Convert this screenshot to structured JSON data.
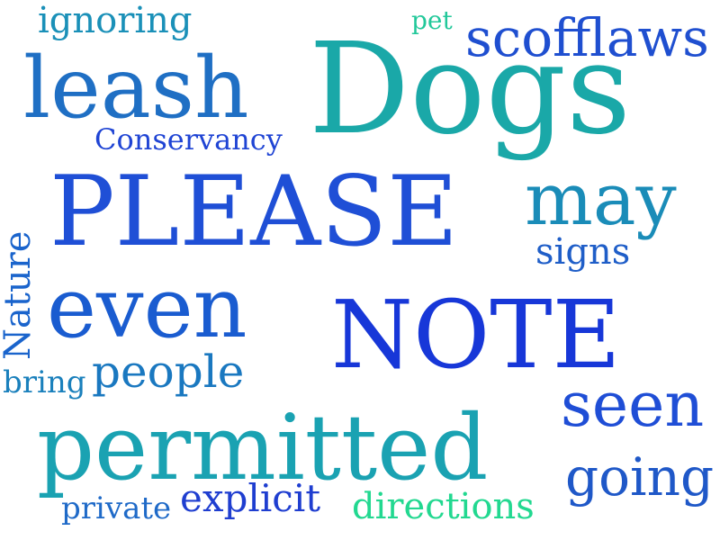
{
  "words": [
    {
      "text": "Dogs",
      "color": "#1aa8a8"
    },
    {
      "text": "PLEASE",
      "color": "#1f4fd6"
    },
    {
      "text": "NOTE",
      "color": "#1737d8"
    },
    {
      "text": "permitted",
      "color": "#1aa2b2"
    },
    {
      "text": "leash",
      "color": "#1f6fc4"
    },
    {
      "text": "even",
      "color": "#1a5cd0"
    },
    {
      "text": "may",
      "color": "#1a8cb8"
    },
    {
      "text": "scofflaws",
      "color": "#1f4fd0"
    },
    {
      "text": "seen",
      "color": "#1f4ed6"
    },
    {
      "text": "going",
      "color": "#1f58c8"
    },
    {
      "text": "people",
      "color": "#1a78c0"
    },
    {
      "text": "explicit",
      "color": "#1f3ed0"
    },
    {
      "text": "directions",
      "color": "#22d890"
    },
    {
      "text": "ignoring",
      "color": "#1a90b8"
    },
    {
      "text": "Conservancy",
      "color": "#1f44d4"
    },
    {
      "text": "signs",
      "color": "#1f5ec8"
    },
    {
      "text": "Nature",
      "color": "#1a64cc"
    },
    {
      "text": "bring",
      "color": "#1a80bc"
    },
    {
      "text": "private",
      "color": "#1f6ac8"
    },
    {
      "text": "pet",
      "color": "#22c89a"
    }
  ]
}
